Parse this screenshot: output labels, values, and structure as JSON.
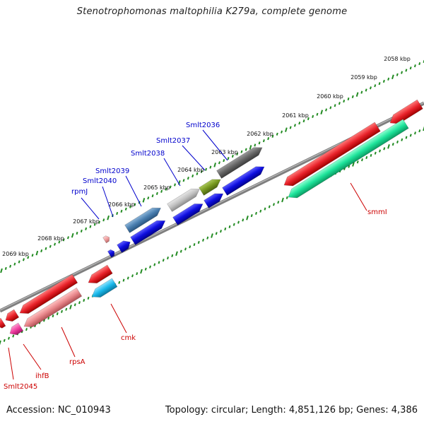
{
  "title": "Stenotrophomonas maltophilia K279a, complete genome",
  "footer": {
    "accession": "Accession: NC_010943",
    "summary": "Topology: circular; Length: 4,851,126 bp; Genes: 4,386"
  },
  "ruler": {
    "labels": [
      "2058 kbp",
      "2059 kbp",
      "2060 kbp",
      "2061 kbp",
      "2062 kbp",
      "2063 kbp",
      "2064 kbp",
      "2065 kbp",
      "2066 kbp",
      "2067 kbp",
      "2068 kbp",
      "2069 kbp"
    ],
    "color": "#228B22"
  },
  "colors": {
    "backbone": "#7f7f7f",
    "forward_label": "#0000cc",
    "reverse_label": "#cc0000"
  },
  "genes": [
    {
      "name": "smmI",
      "strand": "reverse",
      "fill": "#e8222a",
      "label": "smmI"
    },
    {
      "name": "smmI-rna",
      "strand": "reverse",
      "fill": "#1de39a",
      "label": ""
    },
    {
      "name": "Smlt2036",
      "strand": "forward",
      "fill": "#666666",
      "label": "Smlt2036"
    },
    {
      "name": "Smlt2036-cds",
      "strand": "forward",
      "fill": "#0e0edf",
      "label": ""
    },
    {
      "name": "Smlt2037",
      "strand": "forward",
      "fill": "#779820",
      "label": "Smlt2037"
    },
    {
      "name": "Smlt2037-cds",
      "strand": "forward",
      "fill": "#0e0edf",
      "label": ""
    },
    {
      "name": "Smlt2038",
      "strand": "forward",
      "fill": "#c2c2c2",
      "label": "Smlt2038"
    },
    {
      "name": "Smlt2038-cds",
      "strand": "forward",
      "fill": "#0e0edf",
      "label": ""
    },
    {
      "name": "Smlt2039",
      "strand": "forward",
      "fill": "#4a7fb0",
      "label": "Smlt2039"
    },
    {
      "name": "Smlt2039-cds",
      "strand": "forward",
      "fill": "#0e0edf",
      "label": ""
    },
    {
      "name": "Smlt2040",
      "strand": "forward",
      "fill": "#0e0edf",
      "label": "Smlt2040"
    },
    {
      "name": "rpmJ",
      "strand": "forward",
      "fill": "#f0a0a0",
      "label": "rpmJ"
    },
    {
      "name": "cmk",
      "strand": "reverse",
      "fill": "#e8222a",
      "label": "cmk"
    },
    {
      "name": "cmk-rna",
      "strand": "reverse",
      "fill": "#19b8ea",
      "label": ""
    },
    {
      "name": "rpsA",
      "strand": "reverse",
      "fill": "#e8222a",
      "label": "rpsA"
    },
    {
      "name": "rpsA-2",
      "strand": "reverse",
      "fill": "#e8868a",
      "label": ""
    },
    {
      "name": "ihfB",
      "strand": "reverse",
      "fill": "#e8222a",
      "label": "ihfB"
    },
    {
      "name": "ihfB-2",
      "strand": "reverse",
      "fill": "#ef3fa0",
      "label": ""
    },
    {
      "name": "Smlt2045",
      "strand": "reverse",
      "fill": "#e8222a",
      "label": "Smlt2045"
    }
  ]
}
